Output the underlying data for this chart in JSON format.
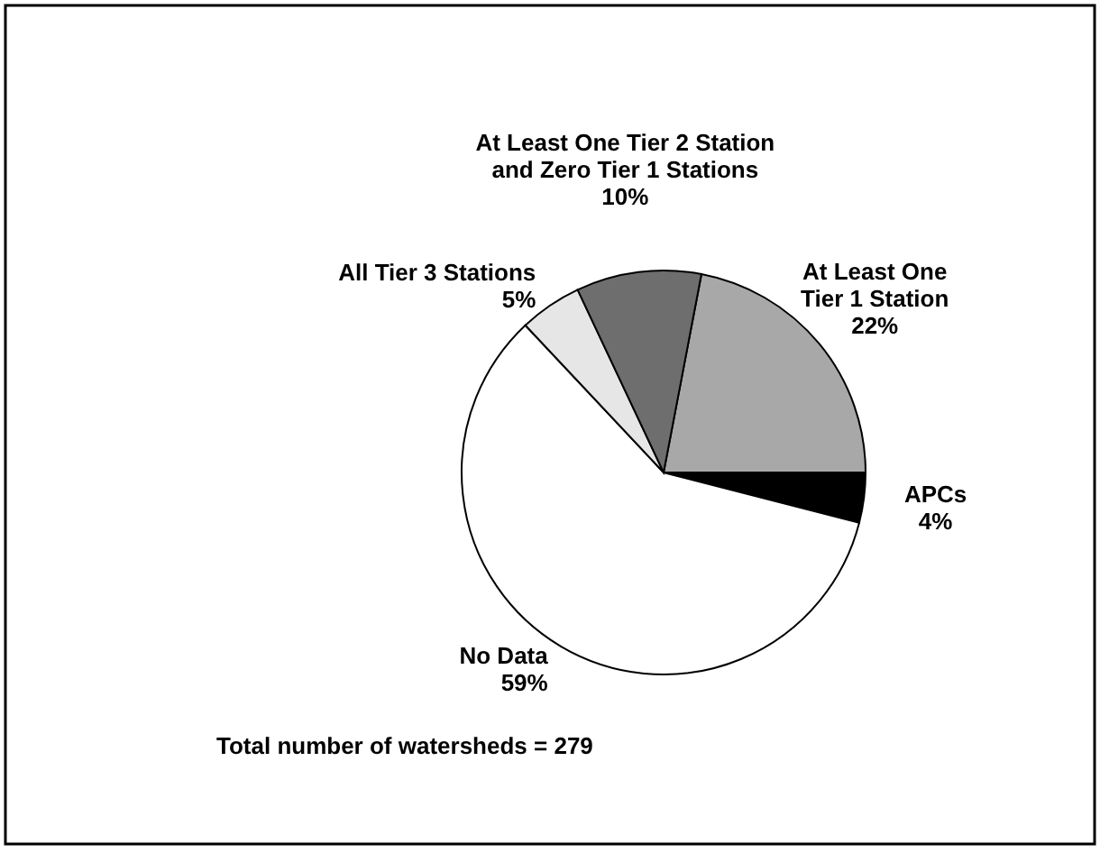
{
  "chart_data": {
    "type": "pie",
    "categories": [
      "At Least One Tier 1 Station",
      "APCs",
      "No Data",
      "All Tier 3 Stations",
      "At Least One Tier 2 Station and Zero Tier 1 Stations"
    ],
    "values": [
      22,
      4,
      59,
      5,
      10
    ],
    "colors": [
      "#a8a8a8",
      "#000000",
      "#ffffff",
      "#e6e6e6",
      "#6e6e6e"
    ],
    "value_labels": [
      "22%",
      "4%",
      "59%",
      "5%",
      "10%"
    ],
    "annotations": [
      "Total number of watersheds = 279"
    ]
  }
}
